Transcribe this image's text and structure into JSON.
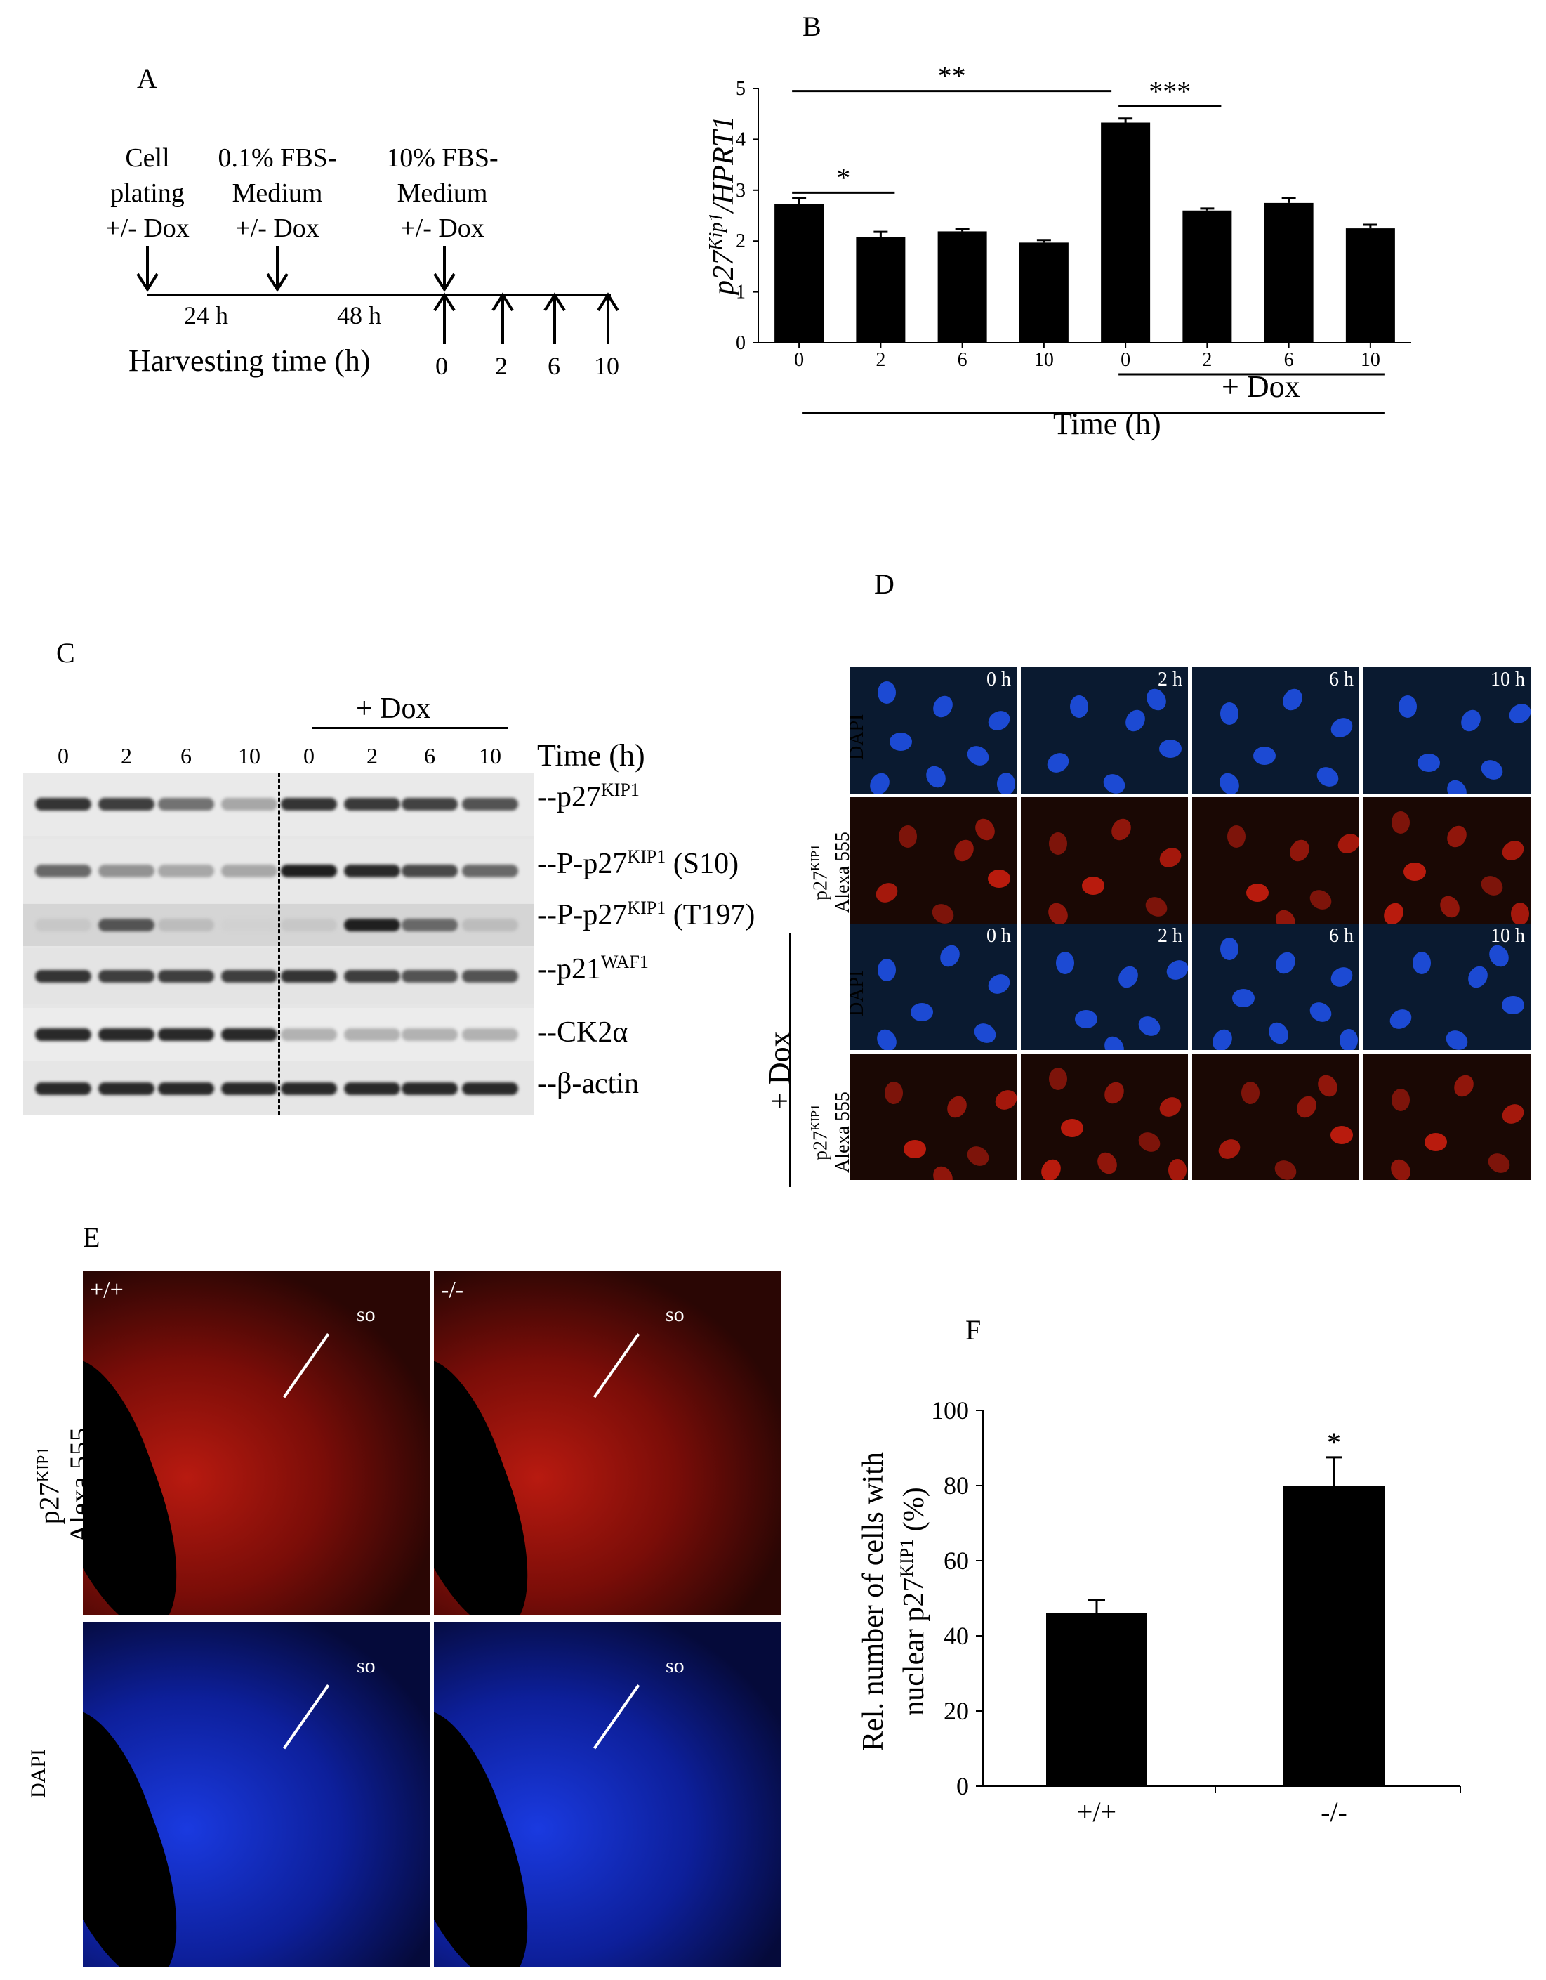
{
  "panels": {
    "A": "A",
    "B": "B",
    "C": "C",
    "D": "D",
    "E": "E",
    "F": "F"
  },
  "panelA": {
    "col1": [
      "Cell",
      "plating",
      "+/- Dox"
    ],
    "col2": [
      "0.1% FBS-",
      "Medium",
      "+/- Dox"
    ],
    "col3": [
      "10% FBS-",
      "Medium",
      "+/- Dox"
    ],
    "interval1": "24 h",
    "interval2": "48 h",
    "harvest_label": "Harvesting time (h)",
    "harvest_times": [
      "0",
      "2",
      "6",
      "10"
    ]
  },
  "panelB": {
    "ylabel_main": "p27",
    "ylabel_sup": "Kip1",
    "ylabel_slash": "/",
    "ylabel_den": "HPRT1",
    "dox_label": "+ Dox",
    "xlabel": "Time (h)",
    "sig": [
      "*",
      "**",
      "***"
    ]
  },
  "chart_data": [
    {
      "type": "bar",
      "panel": "B",
      "categories": [
        "0",
        "2",
        "6",
        "10",
        "0",
        "2",
        "6",
        "10"
      ],
      "values": [
        2.73,
        2.08,
        2.19,
        1.97,
        4.33,
        2.6,
        2.75,
        2.25
      ],
      "errors": [
        0.12,
        0.1,
        0.04,
        0.05,
        0.08,
        0.04,
        0.1,
        0.07
      ],
      "xlabel": "Time (h)",
      "ylabel": "p27Kip1/HPRT1",
      "ylim": [
        0,
        5
      ],
      "yticks": [
        "0",
        "1",
        "2",
        "3",
        "4",
        "5"
      ],
      "group_label": "+ Dox",
      "significance": [
        {
          "from": 0,
          "to": 1,
          "label": "*"
        },
        {
          "from": 0,
          "to": 4,
          "label": "**"
        },
        {
          "from": 4,
          "to": 5,
          "label": "***"
        }
      ]
    },
    {
      "type": "bar",
      "panel": "F",
      "categories": [
        "+/+",
        "-/-"
      ],
      "values": [
        46,
        80
      ],
      "errors": [
        3.5,
        7.5
      ],
      "ylabel": "Rel. number of cells with nuclear p27KIP1 (%)",
      "ylim": [
        0,
        100
      ],
      "yticks": [
        "0",
        "20",
        "40",
        "60",
        "80",
        "100"
      ],
      "significance": [
        {
          "bar": 1,
          "label": "*"
        }
      ]
    }
  ],
  "panelC": {
    "dox_label": "+ Dox",
    "lanes": [
      "0",
      "2",
      "6",
      "10",
      "0",
      "2",
      "6",
      "10"
    ],
    "time_label": "Time (h)",
    "bands": [
      {
        "prefix": "--p27",
        "sup": "KIP1",
        "suffix": ""
      },
      {
        "prefix": "--P-p27",
        "sup": "KIP1",
        "suffix": " (S10)"
      },
      {
        "prefix": "--P-p27",
        "sup": "KIP1",
        "suffix": " (T197)"
      },
      {
        "prefix": "--p21",
        "sup": "WAF1",
        "suffix": ""
      },
      {
        "prefix": "--CK2α",
        "sup": "",
        "suffix": ""
      },
      {
        "prefix": "--β-actin",
        "sup": "",
        "suffix": ""
      }
    ],
    "intensities": [
      [
        0.85,
        0.8,
        0.55,
        0.3,
        0.85,
        0.82,
        0.78,
        0.7
      ],
      [
        0.6,
        0.4,
        0.3,
        0.3,
        0.95,
        0.9,
        0.75,
        0.6
      ],
      [
        0.15,
        0.7,
        0.2,
        0.1,
        0.15,
        0.95,
        0.6,
        0.2
      ],
      [
        0.85,
        0.8,
        0.8,
        0.8,
        0.85,
        0.8,
        0.7,
        0.7
      ],
      [
        0.9,
        0.9,
        0.9,
        0.9,
        0.25,
        0.25,
        0.25,
        0.25
      ],
      [
        0.9,
        0.9,
        0.9,
        0.9,
        0.9,
        0.9,
        0.9,
        0.9
      ]
    ]
  },
  "panelD": {
    "times": [
      "0 h",
      "2 h",
      "6 h",
      "10 h"
    ],
    "row_dapi": "DAPI",
    "row_p27_main": "p27",
    "row_p27_sup": "KIP1",
    "row_p27_sub": "Alexa 555",
    "dox_label": "+ Dox"
  },
  "panelE": {
    "genotypes": [
      "+/+",
      "-/-"
    ],
    "so": "so",
    "row1_main": "p27",
    "row1_sup": "KIP1",
    "row1_sub": "Alexa 555",
    "row2": "DAPI"
  },
  "colors": {
    "dapi": "#1e50e6",
    "alexa": "#e02010",
    "bar": "#000000"
  }
}
